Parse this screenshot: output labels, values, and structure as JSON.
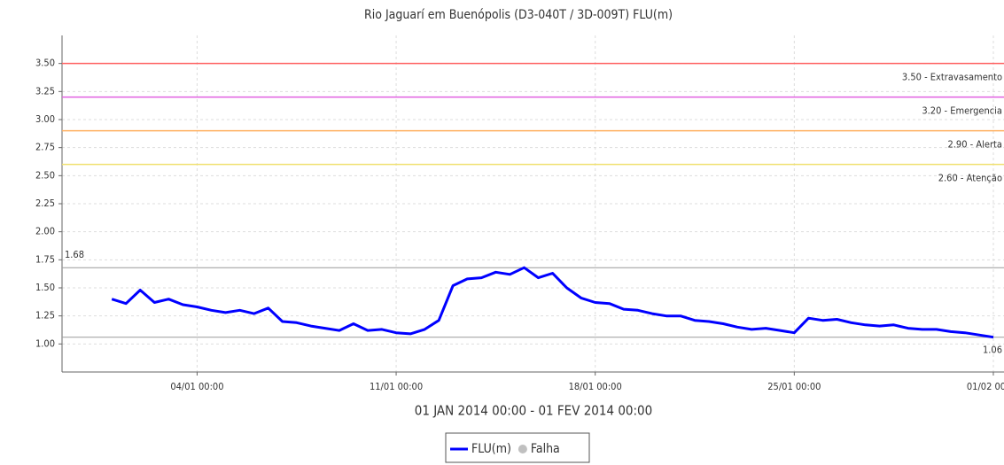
{
  "chart_data": {
    "type": "line",
    "title": "Rio Jaguarí em Buenópolis (D3-040T / 3D-009T) FLU(m)",
    "x_label": "01 JAN 2014 00:00 - 01 FEV 2014 00:00",
    "x": [
      "2014-01-01T00:00",
      "2014-01-01T12:00",
      "2014-01-02T00:00",
      "2014-01-02T12:00",
      "2014-01-03T00:00",
      "2014-01-03T12:00",
      "2014-01-04T00:00",
      "2014-01-04T12:00",
      "2014-01-05T00:00",
      "2014-01-05T12:00",
      "2014-01-06T00:00",
      "2014-01-06T12:00",
      "2014-01-07T00:00",
      "2014-01-07T12:00",
      "2014-01-08T00:00",
      "2014-01-08T12:00",
      "2014-01-09T00:00",
      "2014-01-09T12:00",
      "2014-01-10T00:00",
      "2014-01-10T12:00",
      "2014-01-11T00:00",
      "2014-01-11T12:00",
      "2014-01-12T00:00",
      "2014-01-12T12:00",
      "2014-01-13T00:00",
      "2014-01-13T12:00",
      "2014-01-14T00:00",
      "2014-01-14T12:00",
      "2014-01-15T00:00",
      "2014-01-15T12:00",
      "2014-01-16T00:00",
      "2014-01-16T12:00",
      "2014-01-17T00:00",
      "2014-01-17T12:00",
      "2014-01-18T00:00",
      "2014-01-18T12:00",
      "2014-01-19T00:00",
      "2014-01-19T12:00",
      "2014-01-20T00:00",
      "2014-01-20T12:00",
      "2014-01-21T00:00",
      "2014-01-21T12:00",
      "2014-01-22T00:00",
      "2014-01-22T12:00",
      "2014-01-23T00:00",
      "2014-01-23T12:00",
      "2014-01-24T00:00",
      "2014-01-24T12:00",
      "2014-01-25T00:00",
      "2014-01-25T12:00",
      "2014-01-26T00:00",
      "2014-01-26T12:00",
      "2014-01-27T00:00",
      "2014-01-27T12:00",
      "2014-01-28T00:00",
      "2014-01-28T12:00",
      "2014-01-29T00:00",
      "2014-01-29T12:00",
      "2014-01-30T00:00",
      "2014-01-30T12:00",
      "2014-01-31T00:00",
      "2014-01-31T12:00",
      "2014-02-01T00:00"
    ],
    "series": [
      {
        "name": "FLU(m)",
        "color": "#0000ff",
        "values": [
          1.4,
          1.36,
          1.48,
          1.37,
          1.4,
          1.35,
          1.33,
          1.3,
          1.28,
          1.3,
          1.27,
          1.32,
          1.2,
          1.19,
          1.16,
          1.14,
          1.12,
          1.18,
          1.12,
          1.13,
          1.1,
          1.09,
          1.13,
          1.21,
          1.52,
          1.58,
          1.59,
          1.64,
          1.62,
          1.68,
          1.59,
          1.63,
          1.5,
          1.41,
          1.37,
          1.36,
          1.31,
          1.3,
          1.27,
          1.25,
          1.25,
          1.21,
          1.2,
          1.18,
          1.15,
          1.13,
          1.14,
          1.12,
          1.1,
          1.23,
          1.21,
          1.22,
          1.19,
          1.17,
          1.16,
          1.17,
          1.14,
          1.13,
          1.13,
          1.11,
          1.1,
          1.08,
          1.06
        ]
      }
    ],
    "legend_extra": [
      {
        "name": "Falha",
        "color": "#c0c0c0"
      }
    ],
    "thresholds": [
      {
        "value": 3.5,
        "label": "3.50 - Extravasamento",
        "color": "#ff6060"
      },
      {
        "value": 3.2,
        "label": "3.20 - Emergencia",
        "color": "#e060e0"
      },
      {
        "value": 2.9,
        "label": "2.90 - Alerta",
        "color": "#ffb060"
      },
      {
        "value": 2.6,
        "label": "2.60 - Atenção",
        "color": "#f0e070"
      }
    ],
    "markers": [
      {
        "value": 1.68,
        "label": "1.68",
        "side": "left"
      },
      {
        "value": 1.06,
        "label": "1.06",
        "side": "right"
      }
    ],
    "xlim": [
      "2013-12-30T06:00",
      "2014-02-01T09:00"
    ],
    "xticks": [
      {
        "value": "2014-01-04T00:00",
        "label": "04/01 00:00"
      },
      {
        "value": "2014-01-11T00:00",
        "label": "11/01 00:00"
      },
      {
        "value": "2014-01-18T00:00",
        "label": "18/01 00:00"
      },
      {
        "value": "2014-01-25T00:00",
        "label": "25/01 00:00"
      },
      {
        "value": "2014-02-01T00:00",
        "label": "01/02 00:00"
      }
    ],
    "ylim": [
      0.75,
      3.75
    ],
    "yticks": [
      {
        "value": 1,
        "label": "1.00"
      },
      1.25,
      {
        "value": 1.5,
        "label": "1.50"
      },
      1.75,
      {
        "value": 2,
        "label": "2.00"
      },
      2.25,
      {
        "value": 2.5,
        "label": "2.50"
      },
      2.75,
      {
        "value": 3,
        "label": "3.00"
      },
      3.25,
      {
        "value": 3.5,
        "label": "3.50"
      }
    ],
    "grid": true
  }
}
